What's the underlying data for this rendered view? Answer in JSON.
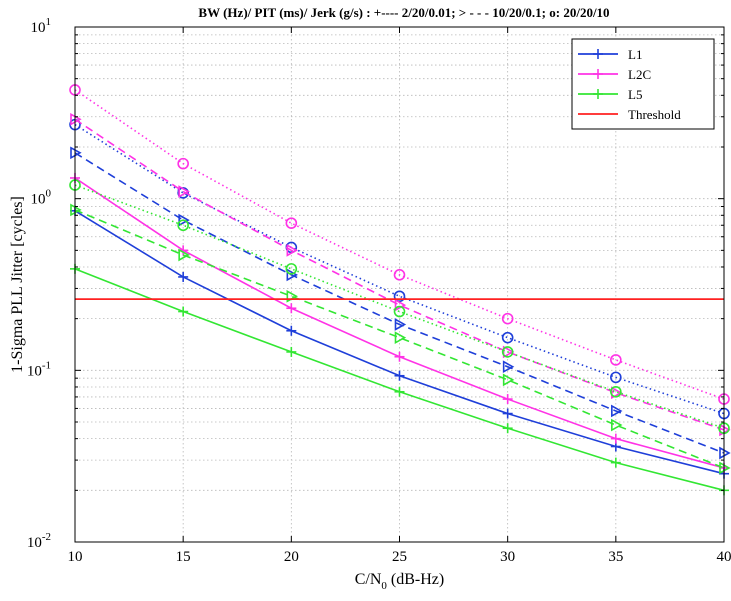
{
  "chart_data": {
    "type": "line",
    "title": "BW (Hz)/ PIT (ms)/ Jerk (g/s) :  +---- 2/20/0.01; > - - - 10/20/0.1;  o: 20/20/10",
    "xlabel": "C/N",
    "xlabel_sub": "0",
    "xlabel_unit": " (dB-Hz)",
    "ylabel": "1-Sigma PLL Jitter [cycles]",
    "xlim": [
      10,
      40
    ],
    "ylim": [
      0.01,
      10
    ],
    "yscale": "log",
    "grid": true,
    "legend_position": "top-right",
    "x_ticks": [
      "10",
      "15",
      "20",
      "25",
      "30",
      "35",
      "40"
    ],
    "y_ticks": [
      {
        "value": 0.01,
        "base": "10",
        "exp": "-2"
      },
      {
        "value": 0.1,
        "base": "10",
        "exp": "-1"
      },
      {
        "value": 1,
        "base": "10",
        "exp": "0"
      },
      {
        "value": 10,
        "base": "10",
        "exp": "1"
      }
    ],
    "x": [
      10,
      15,
      20,
      25,
      30,
      35,
      40
    ],
    "legend": [
      {
        "name": "L1",
        "color": "#1f3fd9",
        "marker": "plus"
      },
      {
        "name": "L2C",
        "color": "#ff33e6",
        "marker": "plus"
      },
      {
        "name": "L5",
        "color": "#33e633",
        "marker": "plus"
      },
      {
        "name": "Threshold",
        "color": "#ff2020",
        "marker": "none"
      }
    ],
    "series": [
      {
        "group": "L1",
        "color": "#1f3fd9",
        "style": "solid",
        "marker": "plus",
        "values": [
          0.85,
          0.35,
          0.17,
          0.093,
          0.056,
          0.036,
          0.025
        ]
      },
      {
        "group": "L1",
        "color": "#1f3fd9",
        "style": "dashed",
        "marker": "triangle",
        "values": [
          1.85,
          0.75,
          0.36,
          0.185,
          0.105,
          0.058,
          0.033
        ]
      },
      {
        "group": "L1",
        "color": "#1f3fd9",
        "style": "dotted",
        "marker": "circle",
        "values": [
          2.7,
          1.08,
          0.52,
          0.27,
          0.155,
          0.091,
          0.056
        ]
      },
      {
        "group": "L2C",
        "color": "#ff33e6",
        "style": "solid",
        "marker": "plus",
        "values": [
          1.32,
          0.5,
          0.23,
          0.12,
          0.068,
          0.04,
          0.027
        ]
      },
      {
        "group": "L2C",
        "color": "#ff33e6",
        "style": "dashed",
        "marker": "triangle",
        "values": [
          2.9,
          1.1,
          0.5,
          0.24,
          0.128,
          0.074,
          0.045
        ]
      },
      {
        "group": "L2C",
        "color": "#ff33e6",
        "style": "dotted",
        "marker": "circle",
        "values": [
          4.3,
          1.6,
          0.72,
          0.36,
          0.2,
          0.115,
          0.068
        ]
      },
      {
        "group": "L5",
        "color": "#33e633",
        "style": "solid",
        "marker": "plus",
        "values": [
          0.39,
          0.22,
          0.128,
          0.075,
          0.046,
          0.029,
          0.02
        ]
      },
      {
        "group": "L5",
        "color": "#33e633",
        "style": "dashed",
        "marker": "triangle",
        "values": [
          0.86,
          0.47,
          0.27,
          0.155,
          0.088,
          0.048,
          0.027
        ]
      },
      {
        "group": "L5",
        "color": "#33e633",
        "style": "dotted",
        "marker": "circle",
        "values": [
          1.2,
          0.7,
          0.39,
          0.22,
          0.128,
          0.075,
          0.046
        ]
      }
    ],
    "threshold": {
      "name": "Threshold",
      "value": 0.26,
      "color": "#ff2020"
    }
  }
}
